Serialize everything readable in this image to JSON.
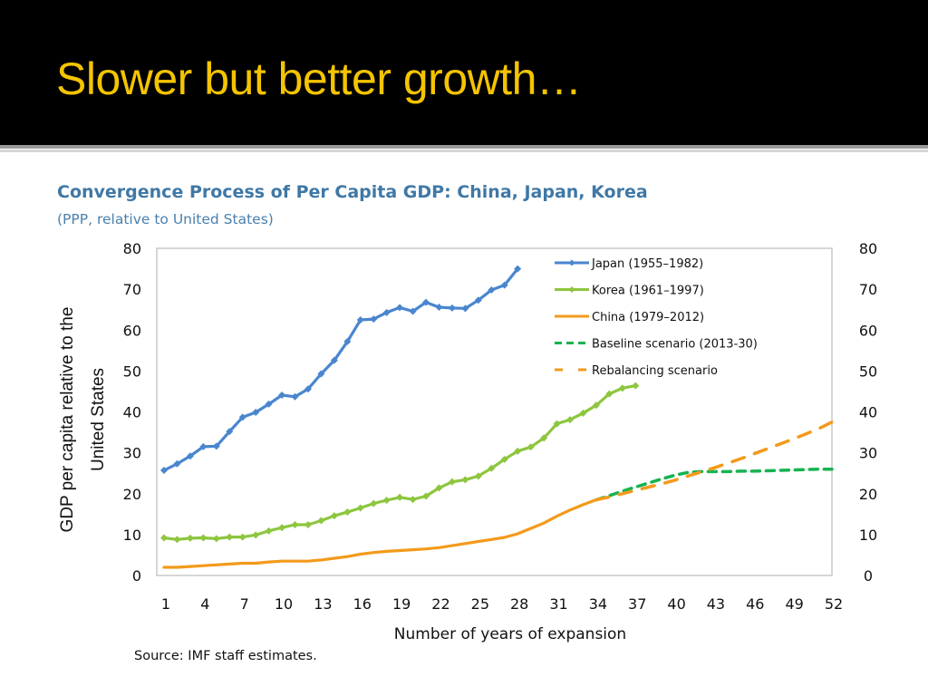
{
  "slide": {
    "title": "Slower but better growth…"
  },
  "source_note": "Source: IMF staff estimates.",
  "chart_data": {
    "type": "line",
    "title": "Convergence Process of Per Capita GDP: China, Japan, Korea",
    "subtitle": "(PPP, relative to United States)",
    "xlabel": "Number of years of expansion",
    "ylabel_lines": [
      "GDP per capita relative to the",
      "United States"
    ],
    "xlim": [
      1,
      52
    ],
    "ylim": [
      0,
      80
    ],
    "x_ticks": [
      "1",
      "4",
      "7",
      "10",
      "13",
      "16",
      "19",
      "22",
      "25",
      "28",
      "31",
      "34",
      "37",
      "40",
      "43",
      "46",
      "49",
      "52"
    ],
    "y_ticks": [
      "0",
      "10",
      "20",
      "30",
      "40",
      "50",
      "60",
      "70",
      "80"
    ],
    "y_ticks_right": [
      "0",
      "10",
      "20",
      "30",
      "40",
      "50",
      "60",
      "70",
      "80"
    ],
    "grid": false,
    "legend_position": "top-right",
    "series": [
      {
        "name": "Japan (1955–1982)",
        "color": "#4a86cf",
        "style": "solid",
        "markers": true,
        "x_start": 1,
        "values": [
          25.7,
          27.3,
          29.2,
          31.5,
          31.6,
          35.2,
          38.7,
          39.9,
          41.9,
          44.1,
          43.7,
          45.6,
          49.3,
          52.6,
          57.2,
          62.5,
          62.7,
          64.3,
          65.5,
          64.6,
          66.8,
          65.6,
          65.4,
          65.3,
          67.3,
          69.8,
          71.0,
          75.0
        ]
      },
      {
        "name": "Korea (1961–1997)",
        "color": "#8dc63f",
        "style": "solid",
        "markers": true,
        "x_start": 1,
        "values": [
          9.2,
          8.8,
          9.1,
          9.2,
          9.0,
          9.4,
          9.4,
          9.9,
          10.9,
          11.7,
          12.4,
          12.4,
          13.4,
          14.6,
          15.5,
          16.5,
          17.6,
          18.4,
          19.1,
          18.6,
          19.4,
          21.4,
          22.9,
          23.4,
          24.3,
          26.2,
          28.4,
          30.4,
          31.4,
          33.6,
          37.1,
          38.1,
          39.7,
          41.6,
          44.4,
          45.8,
          46.4
        ]
      },
      {
        "name": "China (1979–2012)",
        "color": "#f39a1b",
        "style": "solid",
        "markers": false,
        "x_start": 1,
        "values": [
          2.0,
          2.0,
          2.2,
          2.4,
          2.6,
          2.8,
          3.0,
          3.0,
          3.3,
          3.5,
          3.5,
          3.5,
          3.8,
          4.2,
          4.6,
          5.2,
          5.6,
          5.9,
          6.1,
          6.3,
          6.5,
          6.8,
          7.3,
          7.8,
          8.3,
          8.8,
          9.3,
          10.2,
          11.5,
          12.8,
          14.5,
          16.0,
          17.3,
          18.5
        ]
      },
      {
        "name": "Baseline scenario (2013-30)",
        "color": "#16b350",
        "style": "dashed",
        "markers": false,
        "x_start": 34,
        "values": [
          18.5,
          19.5,
          20.6,
          21.6,
          22.6,
          23.6,
          24.5,
          25.2,
          25.4,
          25.4,
          25.4,
          25.5,
          25.5,
          25.6,
          25.7,
          25.8,
          25.9,
          26.0,
          26.0
        ]
      },
      {
        "name": "Rebalancing scenario",
        "color": "#f39a1b",
        "style": "dashed",
        "markers": false,
        "x_start": 34,
        "values": [
          18.5,
          19.2,
          20.0,
          20.8,
          21.6,
          22.4,
          23.3,
          24.3,
          25.3,
          26.3,
          27.4,
          28.5,
          29.7,
          30.9,
          32.1,
          33.3,
          34.6,
          35.9,
          37.5
        ]
      }
    ]
  }
}
